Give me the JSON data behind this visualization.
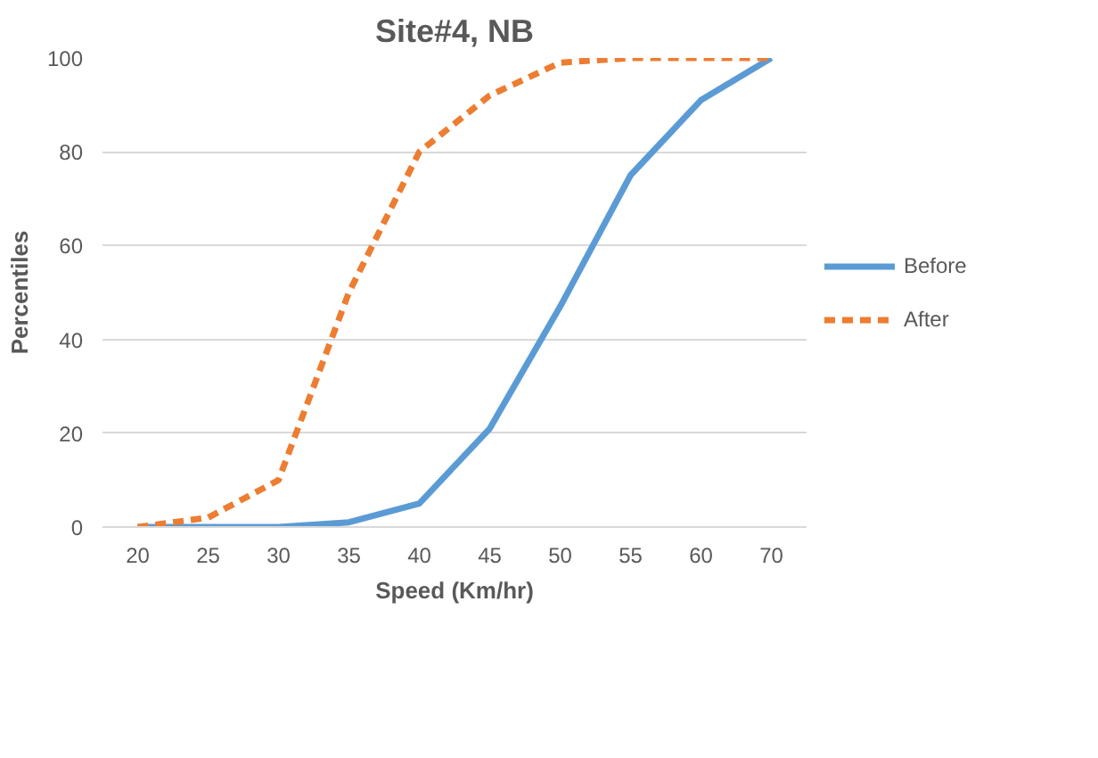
{
  "chart_data": {
    "type": "line",
    "title": "Site#4, NB",
    "xlabel": "Speed (Km/hr)",
    "ylabel": "Percentiles",
    "categories": [
      "20",
      "25",
      "30",
      "35",
      "40",
      "45",
      "50",
      "55",
      "60",
      "70"
    ],
    "series": [
      {
        "name": "Before",
        "color": "#5b9bd5",
        "line_style": "solid",
        "values": [
          0,
          0,
          0,
          1,
          5,
          21,
          47,
          75,
          91,
          100
        ]
      },
      {
        "name": "After",
        "color": "#ed7d31",
        "line_style": "dashed",
        "values": [
          0,
          2,
          10,
          50,
          80,
          92,
          99,
          100,
          100,
          100
        ]
      }
    ],
    "ylim": [
      0,
      100
    ],
    "yticks": [
      0,
      20,
      40,
      60,
      80,
      100
    ],
    "grid": "y",
    "legend": "right",
    "marker": "none"
  }
}
